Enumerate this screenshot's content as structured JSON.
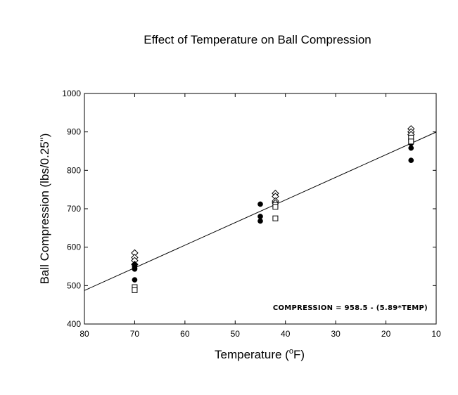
{
  "chart_data": {
    "type": "scatter",
    "title": "Effect of Temperature on Ball Compression",
    "xlabel_main": "Temperature (",
    "xlabel_sup": "o",
    "xlabel_end": "F)",
    "ylabel": "Ball Compression (lbs/0.25\")",
    "xlim": [
      80,
      10
    ],
    "ylim": [
      400,
      1000
    ],
    "x_ticks": [
      "80",
      "70",
      "60",
      "50",
      "40",
      "30",
      "20",
      "10"
    ],
    "y_ticks": [
      "1000",
      "900",
      "800",
      "700",
      "600",
      "500",
      "400"
    ],
    "grid": false,
    "annotation": "COMPRESSION = 958.5 - (5.89*TEMP)",
    "fit_line": {
      "intercept": 958.5,
      "slope": -5.89
    },
    "series": [
      {
        "marker": "diamond-open",
        "points": [
          [
            70,
            585
          ],
          [
            70,
            573
          ],
          [
            70,
            565
          ],
          [
            70,
            555
          ],
          [
            42,
            740
          ],
          [
            42,
            732
          ],
          [
            42,
            720
          ],
          [
            42,
            715
          ],
          [
            15,
            908
          ],
          [
            15,
            900
          ],
          [
            15,
            893
          ]
        ]
      },
      {
        "marker": "circle-filled",
        "points": [
          [
            70,
            555
          ],
          [
            70,
            550
          ],
          [
            70,
            545
          ],
          [
            70,
            543
          ],
          [
            70,
            515
          ],
          [
            45,
            712
          ],
          [
            45,
            680
          ],
          [
            45,
            668
          ],
          [
            15,
            870
          ],
          [
            15,
            858
          ],
          [
            15,
            826
          ]
        ]
      },
      {
        "marker": "square-open",
        "points": [
          [
            70,
            496
          ],
          [
            70,
            488
          ],
          [
            42,
            710
          ],
          [
            42,
            705
          ],
          [
            42,
            675
          ],
          [
            15,
            885
          ],
          [
            15,
            875
          ]
        ]
      }
    ]
  }
}
